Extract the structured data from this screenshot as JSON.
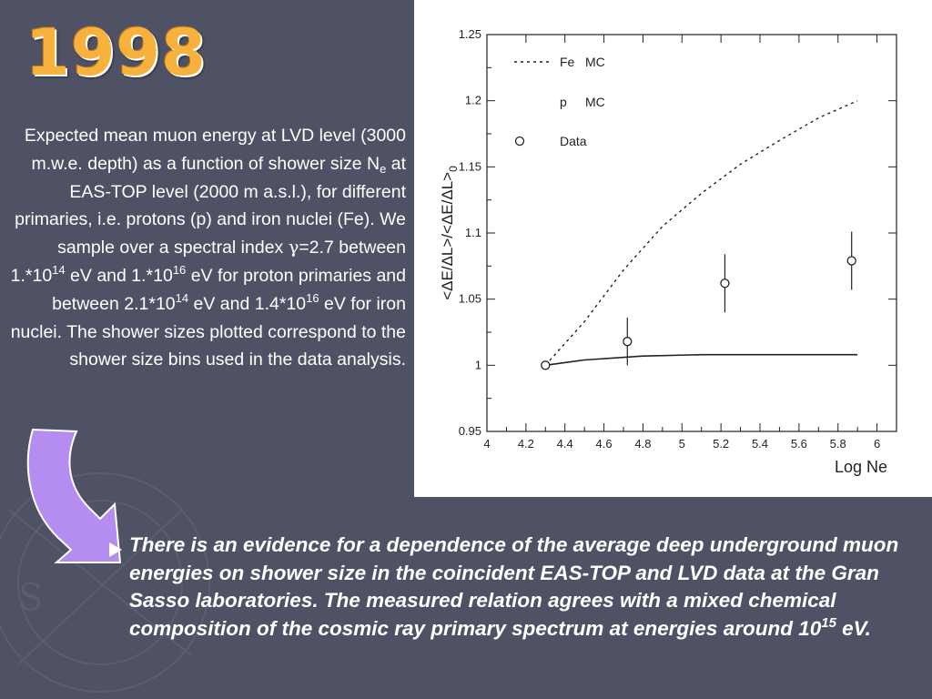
{
  "slide": {
    "year": "1998",
    "description": {
      "p1": "Expected mean muon energy at LVD level (3000 m.w.e. depth) as a function of shower size N",
      "sub_e": "e",
      "p2": " at EAS-TOP level (2000 m a.s.l.), for different primaries, i.e. protons (p) and iron nuclei (Fe). We sample over a spectral index ",
      "gamma": "γ",
      "p3": "=2.7 between 1.*10",
      "sup_1": "14",
      "p4": " eV and 1.*10",
      "sup_2": "16",
      "p5": " eV for proton primaries and between 2.1*10",
      "sup_3": "14",
      "p6": " eV and 1.4*10",
      "sup_4": "16",
      "p7": " eV for iron nuclei. The shower sizes plotted correspond to the shower size bins used in the data analysis."
    },
    "conclusion": {
      "text": "There is an evidence for a dependence of the average deep underground muon energies on shower size in the coincident EAS-TOP and LVD data at the Gran Sasso laboratories. The measured relation agrees with a mixed chemical composition of the cosmic ray primary spectrum at energies around 10",
      "sup": "15",
      "tail": " eV."
    },
    "colors": {
      "background": "#4f5264",
      "year": "#f6b23c",
      "arrow": "#b58cf0",
      "text": "#ffffff"
    }
  },
  "chart_data": {
    "type": "line",
    "xlabel": "Log Ne",
    "ylabel": "<ΔE/ΔL>/<ΔE/ΔL>",
    "ylabel_sub": "0",
    "xlim": [
      4,
      6.1
    ],
    "ylim": [
      0.95,
      1.25
    ],
    "x_ticks": [
      "4",
      "4.2",
      "4.4",
      "4.6",
      "4.8",
      "5",
      "5.2",
      "5.4",
      "5.6",
      "5.8",
      "6"
    ],
    "y_ticks": [
      "0.95",
      "1",
      "1.05",
      "1.1",
      "1.15",
      "1.2",
      "1.25"
    ],
    "grid": false,
    "legend": {
      "placement": "top-left",
      "entries": [
        {
          "label": "Fe",
          "suffix": "MC",
          "style": "dotted"
        },
        {
          "label": "p",
          "suffix": "MC",
          "style": "solid"
        },
        {
          "label": "Data",
          "suffix": "",
          "style": "circle"
        }
      ]
    },
    "series": [
      {
        "name": "Fe MC",
        "style": "dotted",
        "x": [
          4.3,
          4.5,
          4.7,
          4.9,
          5.1,
          5.3,
          5.5,
          5.7,
          5.9
        ],
        "y": [
          1.0,
          1.033,
          1.072,
          1.105,
          1.13,
          1.152,
          1.17,
          1.187,
          1.2
        ]
      },
      {
        "name": "p MC",
        "style": "solid",
        "x": [
          4.3,
          4.5,
          4.8,
          5.1,
          5.4,
          5.7,
          5.9
        ],
        "y": [
          1.0,
          1.004,
          1.007,
          1.008,
          1.008,
          1.008,
          1.008
        ]
      },
      {
        "name": "Data",
        "style": "points",
        "points": [
          {
            "x": 4.3,
            "y": 1.0,
            "err": 0.0
          },
          {
            "x": 4.72,
            "y": 1.018,
            "err": 0.018
          },
          {
            "x": 5.22,
            "y": 1.062,
            "err": 0.022
          },
          {
            "x": 5.87,
            "y": 1.079,
            "err": 0.022
          }
        ]
      }
    ]
  }
}
